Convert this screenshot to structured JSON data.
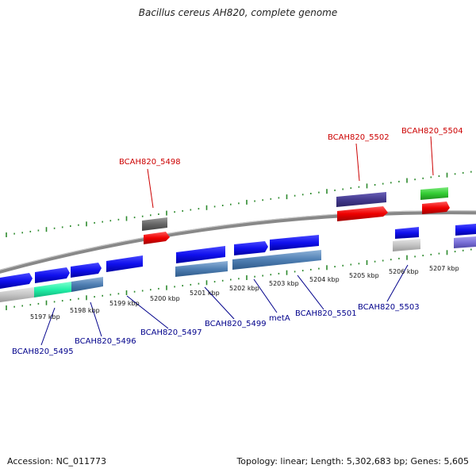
{
  "title": "Bacillus cereus AH820, complete genome",
  "footer": {
    "accession": "Accession: NC_011773",
    "summary": "Topology: linear; Length: 5,302,683 bp; Genes: 5,605"
  },
  "colors": {
    "label_top": "#cc0000",
    "label_bottom": "#00008b",
    "backbone": "#888888",
    "ticks": "#2e8b2e"
  },
  "ticks": [
    "5197 kbp",
    "5198 kbp",
    "5199 kbp",
    "5200 kbp",
    "5201 kbp",
    "5202 kbp",
    "5203 kbp",
    "5204 kbp",
    "5205 kbp",
    "5206 kbp",
    "5207 kbp"
  ],
  "labels_top": [
    "BCAH820_5498",
    "BCAH820_5502",
    "BCAH820_5504"
  ],
  "labels_bottom": [
    "BCAH820_5495",
    "BCAH820_5496",
    "BCAH820_5497",
    "BCAH820_5499",
    "metA",
    "BCAH820_5501",
    "BCAH820_5503"
  ]
}
